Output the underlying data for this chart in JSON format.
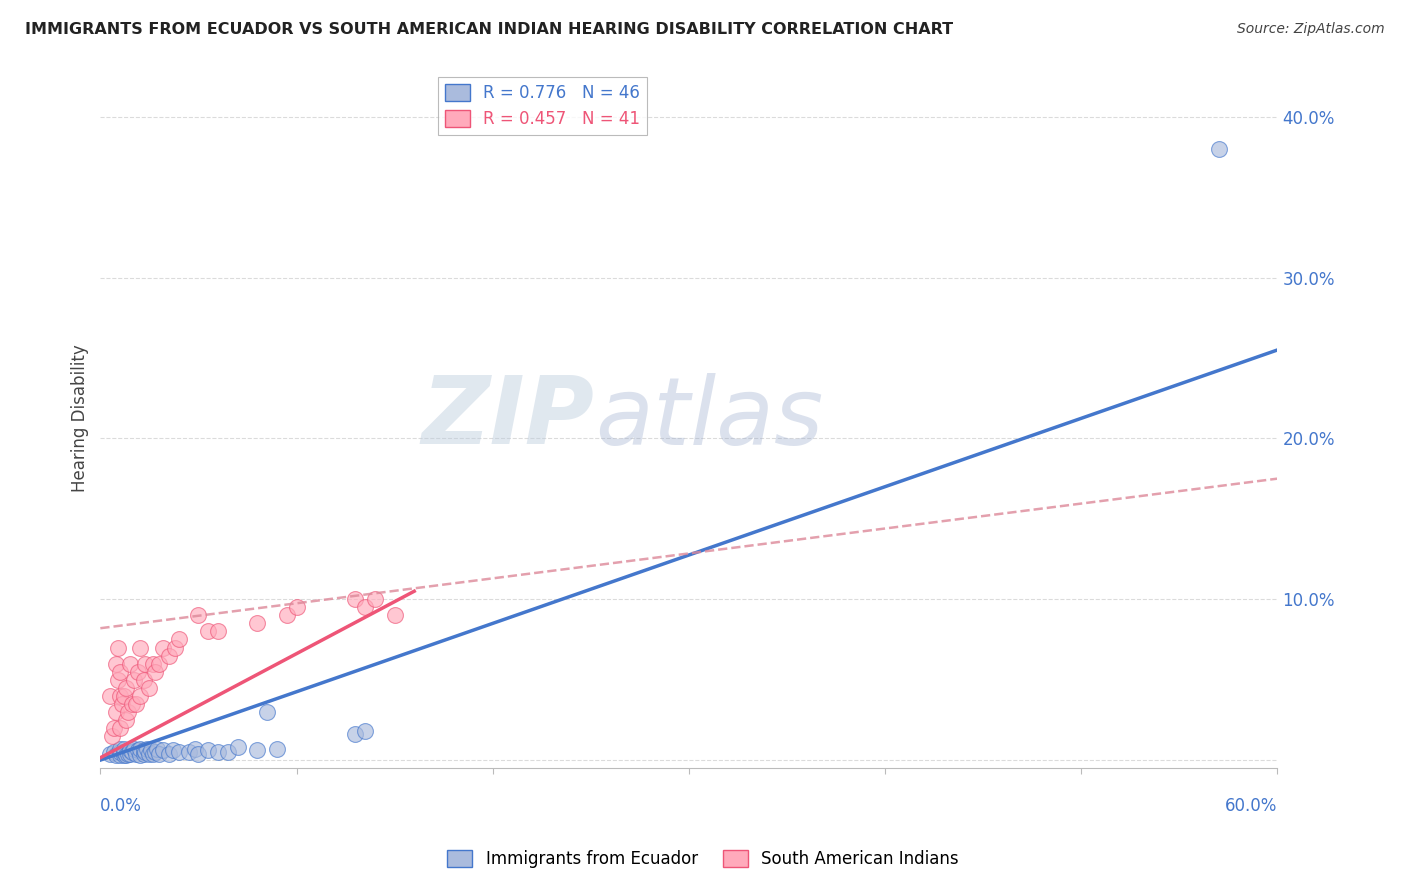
{
  "title": "IMMIGRANTS FROM ECUADOR VS SOUTH AMERICAN INDIAN HEARING DISABILITY CORRELATION CHART",
  "source": "Source: ZipAtlas.com",
  "ylabel": "Hearing Disability",
  "xlim": [
    0,
    0.6
  ],
  "ylim": [
    -0.005,
    0.43
  ],
  "color_ecuador": "#aabbdd",
  "color_indian": "#ffaabb",
  "color_ecuador_line": "#4477cc",
  "color_indian_line": "#ee5577",
  "color_indian_dashed": "#dd8899",
  "watermark_zip": "ZIP",
  "watermark_atlas": "atlas",
  "ecuador_line_x": [
    0.0,
    0.6
  ],
  "ecuador_line_y": [
    0.0,
    0.255
  ],
  "indian_solid_line_x": [
    -0.01,
    0.16
  ],
  "indian_solid_line_y": [
    -0.005,
    0.105
  ],
  "indian_dashed_line_x": [
    0.0,
    0.6
  ],
  "indian_dashed_line_y": [
    0.082,
    0.175
  ],
  "ecuador_scatter_x": [
    0.005,
    0.007,
    0.008,
    0.01,
    0.01,
    0.01,
    0.012,
    0.012,
    0.012,
    0.013,
    0.014,
    0.015,
    0.015,
    0.016,
    0.017,
    0.018,
    0.019,
    0.02,
    0.02,
    0.022,
    0.022,
    0.023,
    0.024,
    0.025,
    0.026,
    0.027,
    0.028,
    0.029,
    0.03,
    0.032,
    0.035,
    0.037,
    0.04,
    0.045,
    0.048,
    0.05,
    0.055,
    0.06,
    0.065,
    0.07,
    0.08,
    0.085,
    0.09,
    0.13,
    0.135,
    0.57
  ],
  "ecuador_scatter_y": [
    0.004,
    0.005,
    0.003,
    0.003,
    0.005,
    0.007,
    0.003,
    0.005,
    0.007,
    0.003,
    0.004,
    0.004,
    0.006,
    0.005,
    0.007,
    0.004,
    0.006,
    0.003,
    0.007,
    0.004,
    0.006,
    0.005,
    0.007,
    0.004,
    0.006,
    0.004,
    0.005,
    0.007,
    0.004,
    0.006,
    0.004,
    0.006,
    0.005,
    0.005,
    0.007,
    0.004,
    0.006,
    0.005,
    0.005,
    0.008,
    0.006,
    0.03,
    0.007,
    0.016,
    0.018,
    0.38
  ],
  "indian_scatter_x": [
    0.005,
    0.006,
    0.007,
    0.008,
    0.008,
    0.009,
    0.009,
    0.01,
    0.01,
    0.01,
    0.011,
    0.012,
    0.013,
    0.013,
    0.014,
    0.015,
    0.016,
    0.017,
    0.018,
    0.019,
    0.02,
    0.02,
    0.022,
    0.023,
    0.025,
    0.027,
    0.028,
    0.03,
    0.032,
    0.035,
    0.038,
    0.04,
    0.05,
    0.055,
    0.06,
    0.08,
    0.095,
    0.1,
    0.13,
    0.135,
    0.14,
    0.15
  ],
  "indian_scatter_y": [
    0.04,
    0.015,
    0.02,
    0.03,
    0.06,
    0.05,
    0.07,
    0.04,
    0.02,
    0.055,
    0.035,
    0.04,
    0.025,
    0.045,
    0.03,
    0.06,
    0.035,
    0.05,
    0.035,
    0.055,
    0.04,
    0.07,
    0.05,
    0.06,
    0.045,
    0.06,
    0.055,
    0.06,
    0.07,
    0.065,
    0.07,
    0.075,
    0.09,
    0.08,
    0.08,
    0.085,
    0.09,
    0.095,
    0.1,
    0.095,
    0.1,
    0.09
  ]
}
